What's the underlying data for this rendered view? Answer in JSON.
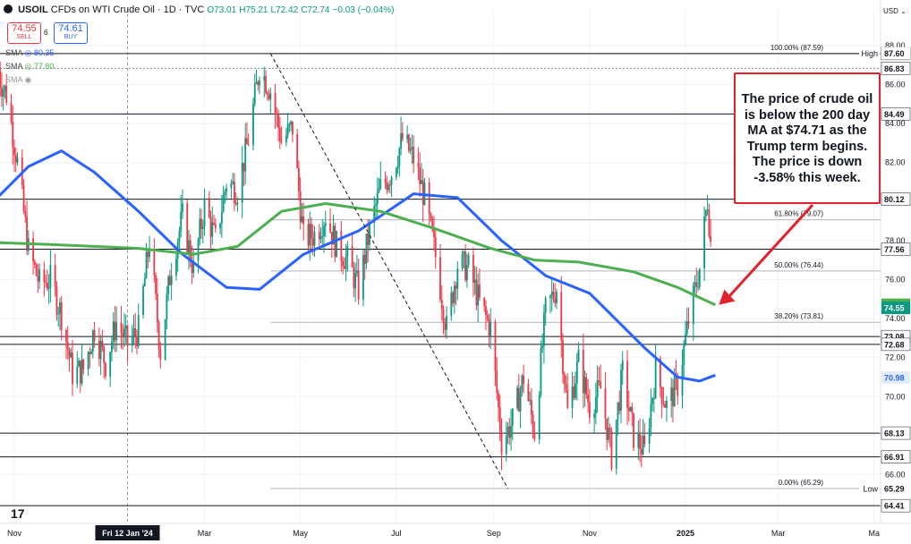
{
  "header": {
    "symbol": "USOIL",
    "title": "CFDs on WTI Crude Oil · 1D · TVC",
    "open": "O73.01",
    "high": "H75.21",
    "low": "L72.42",
    "close": "C72.74",
    "change": "−0.03 (−0.04%)",
    "sell_price": "74.55",
    "sell_label": "SELL",
    "spread": "6",
    "buy_price": "74.61",
    "buy_label": "BUY",
    "currency": "USD ⌄"
  },
  "indicators": [
    {
      "name": "SMA",
      "value": "80.35",
      "color": "#2962ff"
    },
    {
      "name": "SMA",
      "value": "77.80",
      "color": "#4caf50"
    },
    {
      "name": "SMA",
      "value": "",
      "color": "#999999"
    }
  ],
  "annotation": {
    "text": "The price of crude oil is below the 200 day MA at $74.71 as the Trump term begins. The price is down -3.58% this week.",
    "color": "#e1222a"
  },
  "chart_data": {
    "type": "candlestick",
    "symbol": "USOIL",
    "yaxis": {
      "range": [
        63.5,
        88.5
      ],
      "ticks": [
        "66.00",
        "68.00",
        "70.00",
        "72.00",
        "74.00",
        "76.00",
        "78.00",
        "80.00",
        "82.00",
        "84.00",
        "86.00",
        "88.00"
      ],
      "tick_values": [
        66,
        68,
        70,
        72,
        74,
        76,
        78,
        80,
        82,
        84,
        86,
        88
      ]
    },
    "xaxis": {
      "labels": [
        "Nov",
        "Fri 12 Jan '24",
        "Mar",
        "May",
        "Jul",
        "Sep",
        "Nov",
        "2025",
        "Mar",
        "Ma"
      ],
      "label_dates": [
        "2023-11-01",
        "2024-01-12",
        "2024-03-01",
        "2024-05-01",
        "2024-07-01",
        "2024-09-01",
        "2024-11-01",
        "2025-01-01",
        "2025-03-01",
        "2025-05-01"
      ]
    },
    "close_path": [
      [
        "2023-10-20",
        86.8
      ],
      [
        "2023-10-27",
        85.5
      ],
      [
        "2023-11-03",
        82.0
      ],
      [
        "2023-11-10",
        77.5
      ],
      [
        "2023-11-17",
        75.8
      ],
      [
        "2023-11-24",
        76.0
      ],
      [
        "2023-12-01",
        74.2
      ],
      [
        "2023-12-08",
        71.2
      ],
      [
        "2023-12-15",
        71.4
      ],
      [
        "2023-12-22",
        73.5
      ],
      [
        "2023-12-29",
        71.7
      ],
      [
        "2024-01-05",
        73.8
      ],
      [
        "2024-01-12",
        72.7
      ],
      [
        "2024-01-19",
        73.4
      ],
      [
        "2024-01-26",
        78.0
      ],
      [
        "2024-02-02",
        72.3
      ],
      [
        "2024-02-09",
        76.8
      ],
      [
        "2024-02-16",
        79.2
      ],
      [
        "2024-02-23",
        76.5
      ],
      [
        "2024-03-01",
        79.8
      ],
      [
        "2024-03-08",
        78.0
      ],
      [
        "2024-03-15",
        81.0
      ],
      [
        "2024-03-22",
        80.6
      ],
      [
        "2024-03-29",
        83.2
      ],
      [
        "2024-04-05",
        86.9
      ],
      [
        "2024-04-12",
        85.7
      ],
      [
        "2024-04-19",
        83.1
      ],
      [
        "2024-04-26",
        83.8
      ],
      [
        "2024-05-03",
        78.1
      ],
      [
        "2024-05-10",
        78.3
      ],
      [
        "2024-05-17",
        79.3
      ],
      [
        "2024-05-24",
        77.7
      ],
      [
        "2024-05-31",
        77.0
      ],
      [
        "2024-06-07",
        75.5
      ],
      [
        "2024-06-14",
        78.5
      ],
      [
        "2024-06-21",
        80.7
      ],
      [
        "2024-06-28",
        81.5
      ],
      [
        "2024-07-05",
        83.2
      ],
      [
        "2024-07-12",
        82.2
      ],
      [
        "2024-07-19",
        80.2
      ],
      [
        "2024-07-26",
        77.2
      ],
      [
        "2024-08-02",
        73.5
      ],
      [
        "2024-08-09",
        76.8
      ],
      [
        "2024-08-16",
        76.6
      ],
      [
        "2024-08-23",
        74.8
      ],
      [
        "2024-08-30",
        73.5
      ],
      [
        "2024-09-06",
        67.7
      ],
      [
        "2024-09-13",
        68.7
      ],
      [
        "2024-09-20",
        71.0
      ],
      [
        "2024-09-27",
        68.2
      ],
      [
        "2024-10-04",
        74.4
      ],
      [
        "2024-10-11",
        75.6
      ],
      [
        "2024-10-18",
        69.2
      ],
      [
        "2024-10-25",
        71.8
      ],
      [
        "2024-11-01",
        69.5
      ],
      [
        "2024-11-08",
        70.4
      ],
      [
        "2024-11-15",
        67.0
      ],
      [
        "2024-11-22",
        71.2
      ],
      [
        "2024-11-29",
        68.0
      ],
      [
        "2024-12-06",
        67.2
      ],
      [
        "2024-12-13",
        71.3
      ],
      [
        "2024-12-20",
        69.5
      ],
      [
        "2024-12-27",
        70.6
      ],
      [
        "2025-01-03",
        73.9
      ],
      [
        "2025-01-10",
        76.6
      ],
      [
        "2025-01-15",
        80.1
      ],
      [
        "2025-01-17",
        77.9
      ],
      [
        "2025-01-20",
        74.6
      ]
    ],
    "series": [
      {
        "name": "SMA",
        "label": "80.35",
        "color": "#2962ff",
        "points": [
          [
            "2023-10-20",
            80.1
          ],
          [
            "2023-11-10",
            81.8
          ],
          [
            "2023-12-01",
            82.6
          ],
          [
            "2023-12-22",
            81.5
          ],
          [
            "2024-01-19",
            79.5
          ],
          [
            "2024-02-16",
            77.3
          ],
          [
            "2024-03-15",
            75.6
          ],
          [
            "2024-04-05",
            75.5
          ],
          [
            "2024-05-03",
            77.3
          ],
          [
            "2024-06-07",
            78.5
          ],
          [
            "2024-07-12",
            80.4
          ],
          [
            "2024-08-09",
            80.2
          ],
          [
            "2024-09-06",
            78.0
          ],
          [
            "2024-10-04",
            76.2
          ],
          [
            "2024-11-01",
            75.3
          ],
          [
            "2024-12-06",
            72.5
          ],
          [
            "2024-12-27",
            71.0
          ],
          [
            "2025-01-10",
            70.8
          ],
          [
            "2025-01-20",
            71.1
          ]
        ]
      },
      {
        "name": "SMA",
        "label": "77.80",
        "color": "#4caf50",
        "points": [
          [
            "2023-10-20",
            77.9
          ],
          [
            "2023-11-24",
            77.8
          ],
          [
            "2024-01-19",
            77.6
          ],
          [
            "2024-02-23",
            77.3
          ],
          [
            "2024-03-22",
            77.7
          ],
          [
            "2024-04-19",
            79.5
          ],
          [
            "2024-05-17",
            79.9
          ],
          [
            "2024-06-21",
            79.5
          ],
          [
            "2024-07-26",
            78.6
          ],
          [
            "2024-08-30",
            77.6
          ],
          [
            "2024-09-27",
            77.0
          ],
          [
            "2024-10-25",
            76.9
          ],
          [
            "2024-11-29",
            76.4
          ],
          [
            "2024-12-27",
            75.6
          ],
          [
            "2025-01-20",
            74.7
          ]
        ]
      }
    ],
    "horizontal_levels": [
      {
        "value": 87.59,
        "label": "87.59",
        "style": "solid"
      },
      {
        "value": 86.83,
        "label": "86.83",
        "style": "dotted"
      },
      {
        "value": 84.49,
        "label": "84.49",
        "style": "solid"
      },
      {
        "value": 80.12,
        "label": "80.12",
        "style": "solid"
      },
      {
        "value": 77.56,
        "label": "77.56",
        "style": "solid"
      },
      {
        "value": 73.08,
        "label": "73.08",
        "style": "solid"
      },
      {
        "value": 72.68,
        "label": "72.68",
        "style": "solid"
      },
      {
        "value": 68.13,
        "label": "68.13",
        "style": "solid"
      },
      {
        "value": 66.91,
        "label": "66.91",
        "style": "solid"
      },
      {
        "value": 64.41,
        "label": "64.41",
        "style": "solid"
      }
    ],
    "fib_levels": [
      {
        "value": 87.59,
        "label": "100.00% (87.59)"
      },
      {
        "value": 79.07,
        "label": "61.80% (79.07)"
      },
      {
        "value": 76.44,
        "label": "50.00% (76.44)"
      },
      {
        "value": 73.81,
        "label": "38.20% (73.81)"
      },
      {
        "value": 65.29,
        "label": "0.00% (65.29)"
      }
    ],
    "fib_start_date": "2024-04-12",
    "trend_line": {
      "from": [
        "2024-04-12",
        87.59
      ],
      "to": [
        "2024-09-10",
        65.29
      ]
    },
    "price_labels": [
      {
        "value": 87.6,
        "label": "87.60",
        "tag": "High",
        "style": "plain"
      },
      {
        "value": 74.71,
        "label": "74.71",
        "color": "#4caf50",
        "style": "filled"
      },
      {
        "value": 74.55,
        "label": "74.55",
        "color": "#089981",
        "style": "filled"
      },
      {
        "value": 70.98,
        "label": "70.98",
        "color": "#2962ff",
        "style": "light"
      },
      {
        "value": 65.29,
        "label": "65.29",
        "tag": "Low",
        "style": "plain"
      }
    ],
    "arrow_target": [
      "2025-01-20",
      74.71
    ]
  }
}
